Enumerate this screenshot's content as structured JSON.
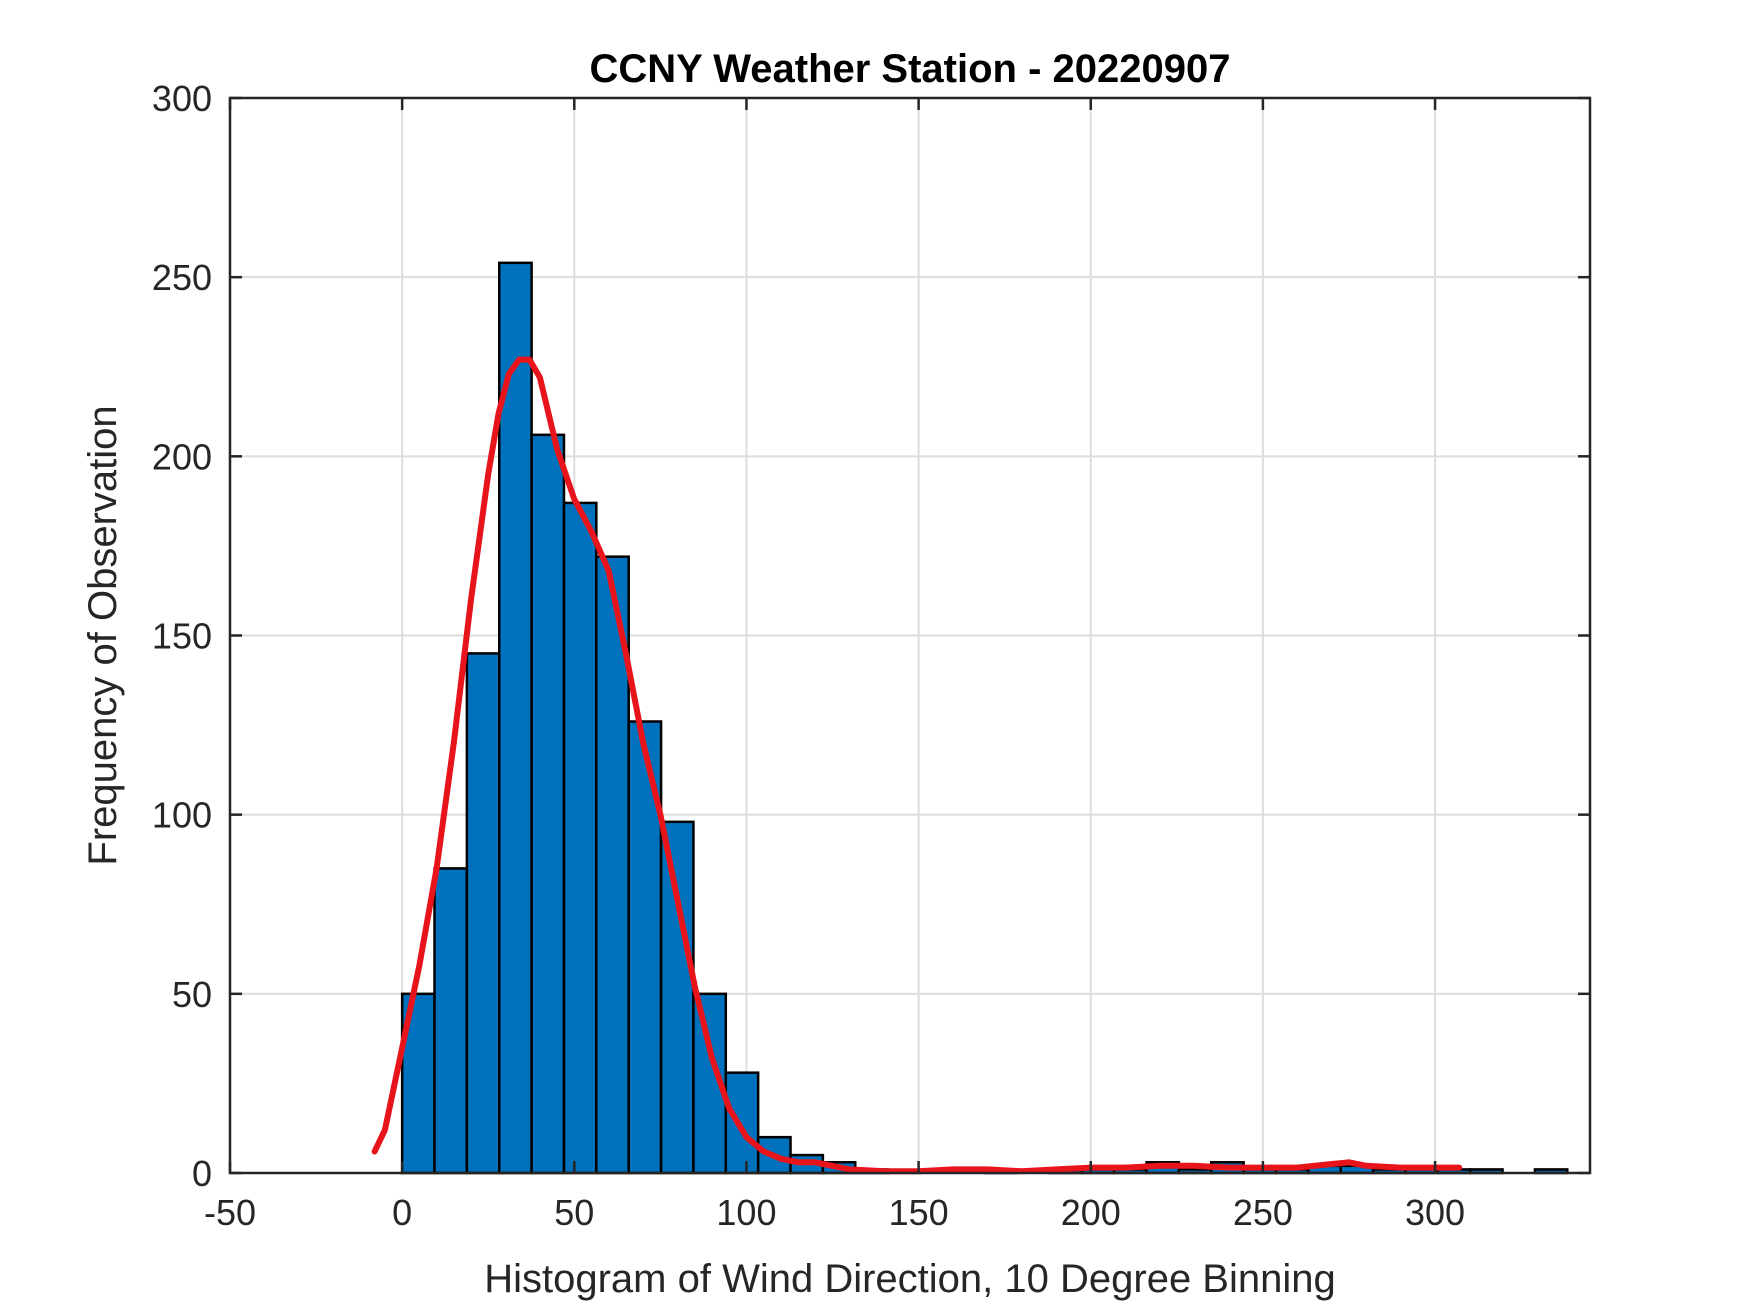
{
  "chart_data": {
    "type": "bar",
    "title": "CCNY Weather Station - 20220907",
    "xlabel": "Histogram of Wind Direction, 10 Degree Binning",
    "ylabel": "Frequency of Observation",
    "xlim": [
      -50,
      345
    ],
    "ylim": [
      0,
      300
    ],
    "xticks": [
      "-50",
      "0",
      "50",
      "100",
      "150",
      "200",
      "250",
      "300"
    ],
    "yticks": [
      "0",
      "50",
      "100",
      "150",
      "200",
      "250",
      "300"
    ],
    "grid": true,
    "bin_width": 9.4,
    "bins": [
      {
        "start": 0.0,
        "value": 50
      },
      {
        "start": 9.4,
        "value": 85
      },
      {
        "start": 18.8,
        "value": 145
      },
      {
        "start": 28.2,
        "value": 254
      },
      {
        "start": 37.6,
        "value": 206
      },
      {
        "start": 47.0,
        "value": 187
      },
      {
        "start": 56.4,
        "value": 172
      },
      {
        "start": 65.8,
        "value": 126
      },
      {
        "start": 75.2,
        "value": 98
      },
      {
        "start": 84.6,
        "value": 50
      },
      {
        "start": 94.0,
        "value": 28
      },
      {
        "start": 103.4,
        "value": 10
      },
      {
        "start": 112.8,
        "value": 5
      },
      {
        "start": 122.2,
        "value": 3
      },
      {
        "start": 131.6,
        "value": 1
      },
      {
        "start": 141.0,
        "value": 0
      },
      {
        "start": 150.4,
        "value": 0
      },
      {
        "start": 159.8,
        "value": 0
      },
      {
        "start": 169.2,
        "value": 1
      },
      {
        "start": 178.6,
        "value": 0
      },
      {
        "start": 188.0,
        "value": 1
      },
      {
        "start": 197.4,
        "value": 1
      },
      {
        "start": 206.8,
        "value": 1
      },
      {
        "start": 216.2,
        "value": 3
      },
      {
        "start": 225.6,
        "value": 1
      },
      {
        "start": 235.0,
        "value": 3
      },
      {
        "start": 244.4,
        "value": 1
      },
      {
        "start": 253.8,
        "value": 1
      },
      {
        "start": 263.2,
        "value": 2
      },
      {
        "start": 272.6,
        "value": 2
      },
      {
        "start": 282.0,
        "value": 1
      },
      {
        "start": 291.4,
        "value": 1
      },
      {
        "start": 300.8,
        "value": 1
      },
      {
        "start": 310.2,
        "value": 1
      },
      {
        "start": 319.6,
        "value": 0
      },
      {
        "start": 329.0,
        "value": 1
      }
    ],
    "fit_curve": {
      "x": [
        -8,
        -5,
        0,
        5,
        10,
        15,
        20,
        25,
        28,
        31,
        34,
        37,
        40,
        45,
        50,
        55,
        60,
        65,
        70,
        75,
        80,
        85,
        90,
        95,
        100,
        105,
        110,
        115,
        120,
        130,
        140,
        150,
        160,
        170,
        180,
        190,
        200,
        210,
        220,
        230,
        240,
        250,
        260,
        270,
        275,
        280,
        290,
        300,
        307
      ],
      "y": [
        6,
        12,
        35,
        58,
        85,
        120,
        160,
        195,
        212,
        223,
        227,
        227,
        222,
        202,
        188,
        179,
        168,
        145,
        120,
        100,
        76,
        52,
        32,
        18,
        10,
        6,
        4,
        3,
        3,
        1,
        0.5,
        0.5,
        1,
        1,
        0.5,
        1,
        1.5,
        1.5,
        2,
        2,
        1.5,
        1.5,
        1.5,
        2.5,
        3,
        2,
        1.5,
        1.5,
        1.5
      ]
    },
    "colors": {
      "bar_fill": "#0072bd",
      "bar_edge": "#000000",
      "fit_line": "#e8141b",
      "grid": "#dcdcdc",
      "axis": "#262626"
    }
  }
}
